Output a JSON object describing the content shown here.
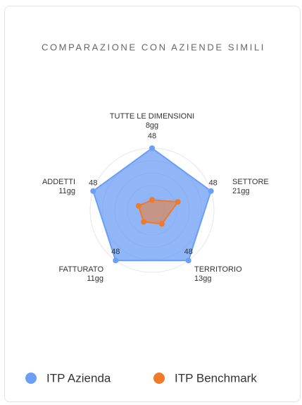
{
  "chart_data": {
    "type": "radar",
    "title": "COMPARAZIONE CON AZIENDE SIMILI",
    "categories": [
      "TUTTE LE DIMENSIONI",
      "SETTORE",
      "TERRITORIO",
      "FATTURATO",
      "ADDETTI"
    ],
    "rlim": [
      0,
      48
    ],
    "series": [
      {
        "name": "ITP Azienda",
        "color": "#6b9ef5",
        "values": [
          48,
          48,
          48,
          48,
          48
        ]
      },
      {
        "name": "ITP Benchmark",
        "color": "#f07a2a",
        "values": [
          8,
          21,
          13,
          11,
          11
        ],
        "value_labels": [
          "8gg",
          "21gg",
          "13gg",
          "11gg",
          "11gg"
        ]
      }
    ],
    "legend": "bottom"
  }
}
